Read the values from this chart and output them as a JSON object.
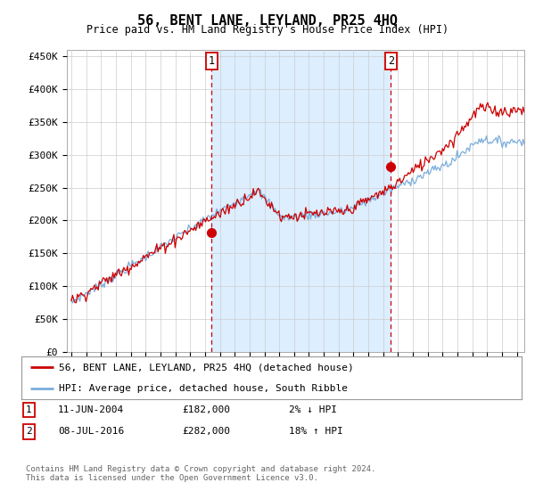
{
  "title": "56, BENT LANE, LEYLAND, PR25 4HQ",
  "subtitle": "Price paid vs. HM Land Registry's House Price Index (HPI)",
  "ylabel_ticks": [
    "£0",
    "£50K",
    "£100K",
    "£150K",
    "£200K",
    "£250K",
    "£300K",
    "£350K",
    "£400K",
    "£450K"
  ],
  "ytick_values": [
    0,
    50000,
    100000,
    150000,
    200000,
    250000,
    300000,
    350000,
    400000,
    450000
  ],
  "ylim": [
    0,
    460000
  ],
  "xlim_start": 1994.7,
  "xlim_end": 2025.5,
  "marker1_x": 2004.44,
  "marker1_y": 182000,
  "marker2_x": 2016.52,
  "marker2_y": 282000,
  "legend_line1": "56, BENT LANE, LEYLAND, PR25 4HQ (detached house)",
  "legend_line2": "HPI: Average price, detached house, South Ribble",
  "table_row1": [
    "1",
    "11-JUN-2004",
    "£182,000",
    "2% ↓ HPI"
  ],
  "table_row2": [
    "2",
    "08-JUL-2016",
    "£282,000",
    "18% ↑ HPI"
  ],
  "footer": "Contains HM Land Registry data © Crown copyright and database right 2024.\nThis data is licensed under the Open Government Licence v3.0.",
  "hpi_color": "#7aaddc",
  "price_color": "#cc0000",
  "marker_color": "#cc0000",
  "vline_color": "#cc0000",
  "shade_color": "#ddeeff",
  "background_color": "#ffffff",
  "grid_color": "#cccccc"
}
